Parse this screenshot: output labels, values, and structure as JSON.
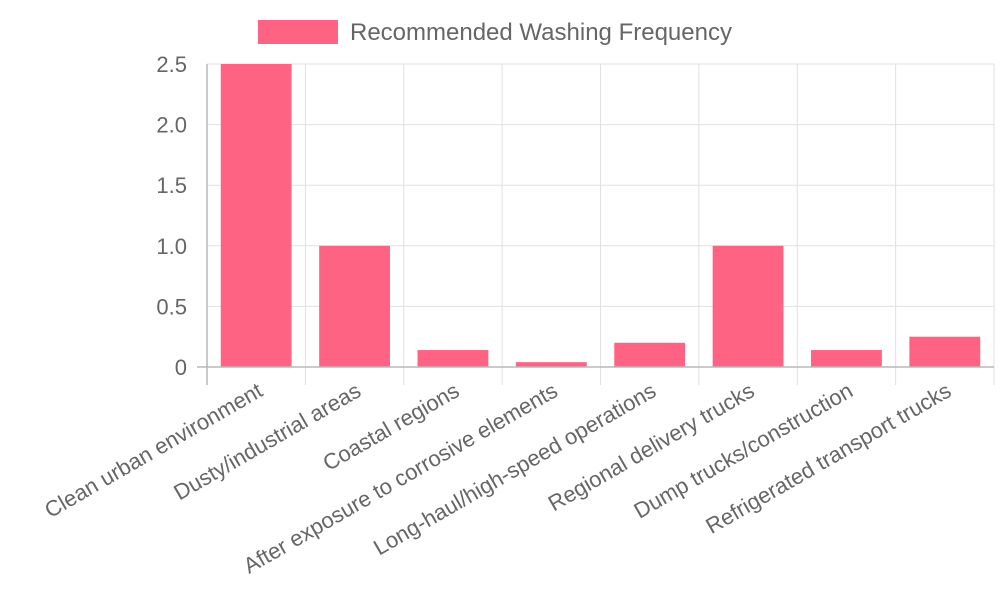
{
  "chart_data": {
    "type": "bar",
    "categories": [
      "Clean urban environment",
      "Dusty/industrial areas",
      "Coastal regions",
      "After exposure to corrosive elements",
      "Long-haul/high-speed operations",
      "Regional delivery trucks",
      "Dump trucks/construction",
      "Refrigerated transport trucks"
    ],
    "series": [
      {
        "name": "Recommended Washing Frequency",
        "values": [
          2.5,
          1.0,
          0.14,
          0.04,
          0.2,
          1.0,
          0.14,
          0.25
        ],
        "color": "#ff6384"
      }
    ],
    "ylim": [
      0,
      2.5
    ],
    "yticks": [
      "0",
      "0.5",
      "1.0",
      "1.5",
      "2.0",
      "2.5"
    ],
    "ytick_values": [
      0,
      0.5,
      1.0,
      1.5,
      2.0,
      2.5
    ],
    "grid": true,
    "legend_position": "top"
  }
}
